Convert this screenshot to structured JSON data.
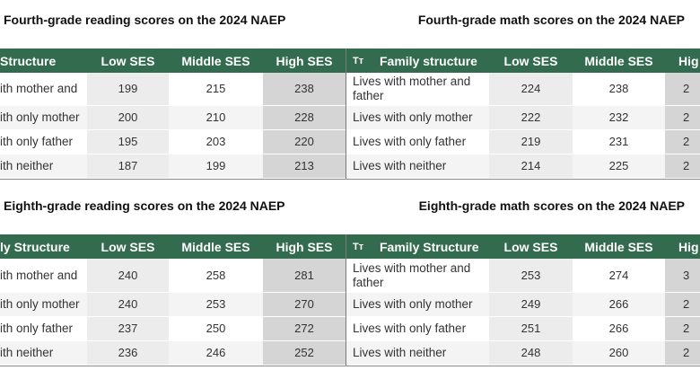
{
  "tables": [
    {
      "title": "Fourth-grade reading scores on the 2024 NAEP",
      "headers": [
        "Structure",
        "Low SES",
        "Middle SES",
        "High SES"
      ],
      "rows": [
        [
          "ith mother and",
          199,
          215,
          238
        ],
        [
          "ith only mother",
          200,
          210,
          228
        ],
        [
          "ith only father",
          195,
          203,
          220
        ],
        [
          "ith neither",
          187,
          199,
          213
        ]
      ]
    },
    {
      "title": "Fourth-grade math scores on the 2024 NAEP",
      "header_icon": "Tт",
      "headers": [
        "Family structure",
        "Low SES",
        "Middle SES",
        "Hig"
      ],
      "rows": [
        [
          "Lives with mother and father",
          224,
          238,
          "2"
        ],
        [
          "Lives with only mother",
          222,
          232,
          "2"
        ],
        [
          "Lives with only father",
          219,
          231,
          "2"
        ],
        [
          "Lives with neither",
          214,
          225,
          "2"
        ]
      ]
    },
    {
      "title": "Eighth-grade reading scores on the 2024 NAEP",
      "headers": [
        "ly Structure",
        "Low SES",
        "Middle SES",
        "High SES"
      ],
      "rows": [
        [
          "ith mother and",
          240,
          258,
          281
        ],
        [
          "ith only mother",
          240,
          253,
          270
        ],
        [
          "ith only father",
          237,
          250,
          272
        ],
        [
          "ith neither",
          236,
          246,
          252
        ]
      ]
    },
    {
      "title": "Eighth-grade math scores on the 2024 NAEP",
      "header_icon": "Tт",
      "headers": [
        "Family Structure",
        "Low SES",
        "Middle SES",
        "Hig"
      ],
      "rows": [
        [
          "Lives with mother and father",
          253,
          274,
          "3"
        ],
        [
          "Lives with only mother",
          249,
          266,
          "2"
        ],
        [
          "Lives with only father",
          251,
          266,
          "2"
        ],
        [
          "Lives with neither",
          248,
          260,
          "2"
        ]
      ]
    }
  ]
}
